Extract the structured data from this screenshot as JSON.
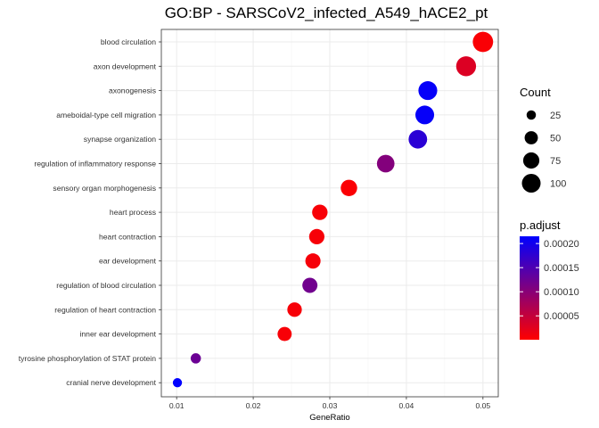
{
  "chart_data": {
    "type": "scatter",
    "title": "GO:BP - SARSCoV2_infected_A549_hACE2_pt",
    "xlabel": "GeneRatio",
    "ylabel": "",
    "xlim": [
      0.008,
      0.052
    ],
    "x_ticks": [
      0.01,
      0.02,
      0.03,
      0.04,
      0.05
    ],
    "x_tick_labels": [
      "0.01",
      "0.02",
      "0.03",
      "0.04",
      "0.05"
    ],
    "grid": true,
    "legend_position": "right",
    "categories": [
      "blood circulation",
      "axon development",
      "axonogenesis",
      "ameboidal-type cell migration",
      "synapse organization",
      "regulation of inflammatory response",
      "sensory organ morphogenesis",
      "heart process",
      "heart contraction",
      "ear development",
      "regulation of blood circulation",
      "regulation of heart contraction",
      "inner ear development",
      "tyrosine phosphorylation of STAT protein",
      "cranial nerve development"
    ],
    "points": [
      {
        "category": "blood circulation",
        "gene_ratio": 0.05,
        "count": 118,
        "p_adjust": 5e-06
      },
      {
        "category": "axon development",
        "gene_ratio": 0.0478,
        "count": 113,
        "p_adjust": 3e-05
      },
      {
        "category": "axonogenesis",
        "gene_ratio": 0.0428,
        "count": 101,
        "p_adjust": 0.00021
      },
      {
        "category": "ameboidal-type cell migration",
        "gene_ratio": 0.0424,
        "count": 100,
        "p_adjust": 0.00021
      },
      {
        "category": "synapse organization",
        "gene_ratio": 0.0415,
        "count": 98,
        "p_adjust": 0.00018
      },
      {
        "category": "regulation of inflammatory response",
        "gene_ratio": 0.0373,
        "count": 88,
        "p_adjust": 0.000105
      },
      {
        "category": "sensory organ morphogenesis",
        "gene_ratio": 0.0325,
        "count": 77,
        "p_adjust": 4e-06
      },
      {
        "category": "heart process",
        "gene_ratio": 0.0287,
        "count": 68,
        "p_adjust": 6e-06
      },
      {
        "category": "heart contraction",
        "gene_ratio": 0.0283,
        "count": 67,
        "p_adjust": 7e-06
      },
      {
        "category": "ear development",
        "gene_ratio": 0.0278,
        "count": 66,
        "p_adjust": 8e-06
      },
      {
        "category": "regulation of blood circulation",
        "gene_ratio": 0.0274,
        "count": 65,
        "p_adjust": 0.00012
      },
      {
        "category": "regulation of heart contraction",
        "gene_ratio": 0.0254,
        "count": 60,
        "p_adjust": 7e-06
      },
      {
        "category": "inner ear development",
        "gene_ratio": 0.0241,
        "count": 57,
        "p_adjust": 6e-06
      },
      {
        "category": "tyrosine phosphorylation of STAT protein",
        "gene_ratio": 0.0125,
        "count": 30,
        "p_adjust": 0.000125
      },
      {
        "category": "cranial nerve development",
        "gene_ratio": 0.0101,
        "count": 24,
        "p_adjust": 0.000215
      }
    ],
    "size_legend": {
      "title": "Count",
      "values": [
        25,
        50,
        75,
        100
      ],
      "labels": [
        "25",
        "50",
        "75",
        "100"
      ]
    },
    "color_legend": {
      "title": "p.adjust",
      "range": [
        5e-07,
        0.000215
      ],
      "ticks": [
        5e-05,
        0.0001,
        0.00015,
        0.0002
      ],
      "tick_labels": [
        "0.00005",
        "0.00010",
        "0.00015",
        "0.00020"
      ],
      "low_color": "#ff0000",
      "high_color": "#0000ff"
    },
    "colors": {
      "panel_border": "#333333",
      "grid": "#ebebeb",
      "background": "#ffffff"
    }
  }
}
